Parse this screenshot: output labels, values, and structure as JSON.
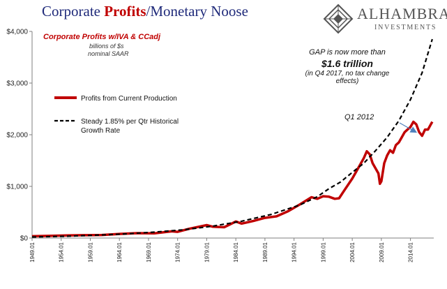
{
  "header": {
    "title_prefix": "Corporate ",
    "title_bold": "Profits",
    "title_suffix": "/Monetary Noose"
  },
  "logo": {
    "name": "ALHAMBRA",
    "sub": "INVESTMENTS",
    "icon": "alhambra-diamond-logo-icon"
  },
  "annotations": {
    "series_title": "Corporate  Profits w/IVA & CCadj",
    "units_line1": "billions of $s",
    "units_line2": "nominal SAAR",
    "gap_line1": "GAP is now more than",
    "gap_line2": "$1.6 trillion",
    "gap_line3": "(in Q4 2017, no tax change",
    "gap_line4": "effects)",
    "q1_label": "Q1 2012"
  },
  "colors": {
    "profits": "#c00000",
    "trend": "#000000",
    "title_blue": "#1f2a7a",
    "arrow": "#4f81bd",
    "axis": "#7f7f7f"
  },
  "chart_data": {
    "type": "line",
    "title": "Corporate Profits/Monetary Noose",
    "xlabel": "",
    "ylabel": "",
    "ylim": [
      0,
      4000
    ],
    "xlim": [
      1949.0,
      2018.0
    ],
    "y_ticks": [
      "$0",
      "$1,000",
      "$2,000",
      "$3,000",
      "$4,000"
    ],
    "y_tick_values": [
      0,
      1000,
      2000,
      3000,
      4000
    ],
    "x_ticks": [
      "1949.01",
      "1954.01",
      "1959.01",
      "1964.01",
      "1969.01",
      "1974.01",
      "1979.01",
      "1984.01",
      "1989.01",
      "1994.01",
      "1999.01",
      "2004.01",
      "2009.01",
      "2014.01"
    ],
    "x_tick_values": [
      1949,
      1954,
      1959,
      1964,
      1969,
      1974,
      1979,
      1984,
      1989,
      1994,
      1999,
      2004,
      2009,
      2014
    ],
    "grid": false,
    "legend_position": "left",
    "series": [
      {
        "name": "Profits from Current Production",
        "style": "solid",
        "x": [
          1949,
          1952,
          1955,
          1958,
          1961,
          1964,
          1967,
          1970,
          1973,
          1974,
          1976,
          1979,
          1980,
          1982,
          1984,
          1985,
          1987,
          1989,
          1991,
          1993,
          1995,
          1997,
          1998,
          1999,
          2000,
          2001,
          2001.75,
          2002.5,
          2004,
          2005,
          2006,
          2006.5,
          2007,
          2007.5,
          2008,
          2008.5,
          2008.75,
          2009,
          2009.5,
          2010,
          2010.5,
          2011,
          2011.5,
          2012,
          2012.5,
          2013,
          2013.5,
          2014,
          2014.5,
          2015,
          2015.5,
          2016,
          2016.5,
          2017,
          2017.5,
          2017.75
        ],
        "y": [
          35,
          42,
          50,
          55,
          60,
          80,
          95,
          90,
          130,
          120,
          180,
          250,
          220,
          210,
          320,
          280,
          330,
          390,
          420,
          520,
          650,
          790,
          760,
          810,
          800,
          760,
          770,
          900,
          1150,
          1350,
          1550,
          1680,
          1620,
          1450,
          1350,
          1250,
          1050,
          1100,
          1450,
          1600,
          1700,
          1650,
          1800,
          1850,
          1950,
          2050,
          2100,
          2150,
          2250,
          2200,
          2050,
          1980,
          2100,
          2100,
          2200,
          2250
        ]
      },
      {
        "name": "Steady 1.85% per Qtr Historical Growth Rate",
        "style": "dashed",
        "x": [
          1949,
          1955,
          1960,
          1965,
          1970,
          1975,
          1980,
          1985,
          1990,
          1995,
          1998,
          2000,
          2002,
          2004,
          2006,
          2008,
          2010,
          2012,
          2014,
          2016,
          2017.75
        ],
        "y": [
          20,
          35,
          55,
          80,
          115,
          160,
          230,
          325,
          455,
          640,
          800,
          955,
          1085,
          1270,
          1450,
          1690,
          1950,
          2270,
          2680,
          3200,
          3850
        ]
      }
    ]
  }
}
